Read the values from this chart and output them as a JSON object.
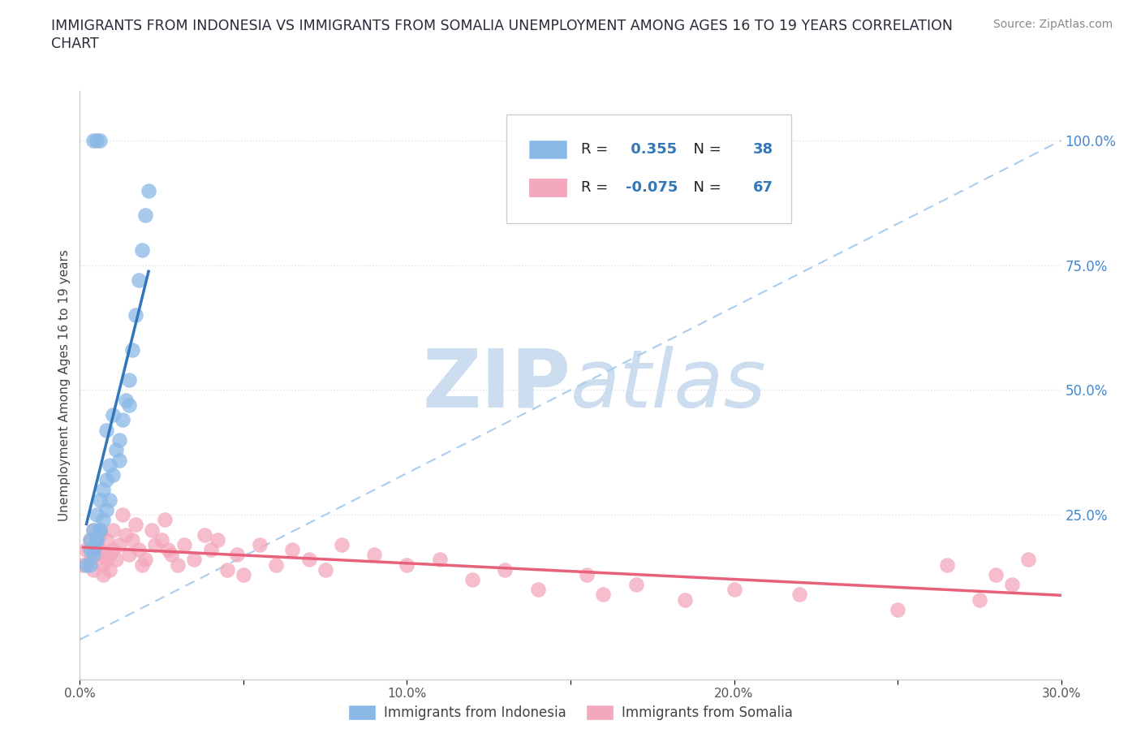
{
  "title_line1": "IMMIGRANTS FROM INDONESIA VS IMMIGRANTS FROM SOMALIA UNEMPLOYMENT AMONG AGES 16 TO 19 YEARS CORRELATION",
  "title_line2": "CHART",
  "source_text": "Source: ZipAtlas.com",
  "ylabel": "Unemployment Among Ages 16 to 19 years",
  "xlim": [
    0.0,
    0.3
  ],
  "ylim": [
    -0.08,
    1.1
  ],
  "xtick_values": [
    0.0,
    0.05,
    0.1,
    0.15,
    0.2,
    0.25,
    0.3
  ],
  "ytick_values": [
    0.25,
    0.5,
    0.75,
    1.0
  ],
  "ytick_labels": [
    "25.0%",
    "50.0%",
    "75.0%",
    "100.0%"
  ],
  "grid_color": "#e0e0e0",
  "background_color": "#ffffff",
  "watermark_zip": "ZIP",
  "watermark_atlas": "atlas",
  "watermark_color": "#ccddef",
  "indonesia_color": "#89b8e6",
  "somalia_color": "#f4a8bc",
  "indonesia_line_color": "#3377bb",
  "somalia_line_color": "#e8607a",
  "ref_line_color": "#aaccee",
  "indonesia_R": 0.355,
  "indonesia_N": 38,
  "somalia_R": -0.075,
  "somalia_N": 67,
  "legend_label_indonesia": "Immigrants from Indonesia",
  "legend_label_somalia": "Immigrants from Somalia",
  "indonesia_x": [
    0.002,
    0.003,
    0.003,
    0.004,
    0.004,
    0.005,
    0.005,
    0.006,
    0.006,
    0.007,
    0.007,
    0.008,
    0.008,
    0.009,
    0.009,
    0.01,
    0.011,
    0.012,
    0.013,
    0.014,
    0.015,
    0.016,
    0.017,
    0.018,
    0.019,
    0.02,
    0.021,
    0.004,
    0.005,
    0.006,
    0.008,
    0.01,
    0.012,
    0.015,
    0.003,
    0.004,
    0.005,
    0.006
  ],
  "indonesia_y": [
    0.15,
    0.18,
    0.2,
    0.17,
    0.22,
    0.2,
    0.25,
    0.22,
    0.28,
    0.24,
    0.3,
    0.26,
    0.32,
    0.28,
    0.35,
    0.33,
    0.38,
    0.4,
    0.44,
    0.48,
    0.52,
    0.58,
    0.65,
    0.72,
    0.78,
    0.85,
    0.9,
    1.0,
    1.0,
    1.0,
    0.42,
    0.45,
    0.36,
    0.47,
    0.15,
    0.18,
    0.2,
    0.22
  ],
  "somalia_x": [
    0.001,
    0.002,
    0.003,
    0.003,
    0.004,
    0.004,
    0.005,
    0.005,
    0.006,
    0.006,
    0.007,
    0.007,
    0.008,
    0.008,
    0.009,
    0.009,
    0.01,
    0.01,
    0.011,
    0.012,
    0.013,
    0.014,
    0.015,
    0.016,
    0.017,
    0.018,
    0.019,
    0.02,
    0.022,
    0.023,
    0.025,
    0.026,
    0.027,
    0.028,
    0.03,
    0.032,
    0.035,
    0.038,
    0.04,
    0.042,
    0.045,
    0.048,
    0.05,
    0.055,
    0.06,
    0.065,
    0.07,
    0.075,
    0.08,
    0.09,
    0.1,
    0.11,
    0.12,
    0.13,
    0.14,
    0.155,
    0.16,
    0.17,
    0.185,
    0.2,
    0.22,
    0.25,
    0.265,
    0.275,
    0.28,
    0.285,
    0.29
  ],
  "somalia_y": [
    0.15,
    0.18,
    0.2,
    0.16,
    0.14,
    0.22,
    0.17,
    0.19,
    0.21,
    0.18,
    0.15,
    0.13,
    0.16,
    0.2,
    0.17,
    0.14,
    0.18,
    0.22,
    0.16,
    0.19,
    0.25,
    0.21,
    0.17,
    0.2,
    0.23,
    0.18,
    0.15,
    0.16,
    0.22,
    0.19,
    0.2,
    0.24,
    0.18,
    0.17,
    0.15,
    0.19,
    0.16,
    0.21,
    0.18,
    0.2,
    0.14,
    0.17,
    0.13,
    0.19,
    0.15,
    0.18,
    0.16,
    0.14,
    0.19,
    0.17,
    0.15,
    0.16,
    0.12,
    0.14,
    0.1,
    0.13,
    0.09,
    0.11,
    0.08,
    0.1,
    0.09,
    0.06,
    0.15,
    0.08,
    0.13,
    0.11,
    0.16
  ]
}
